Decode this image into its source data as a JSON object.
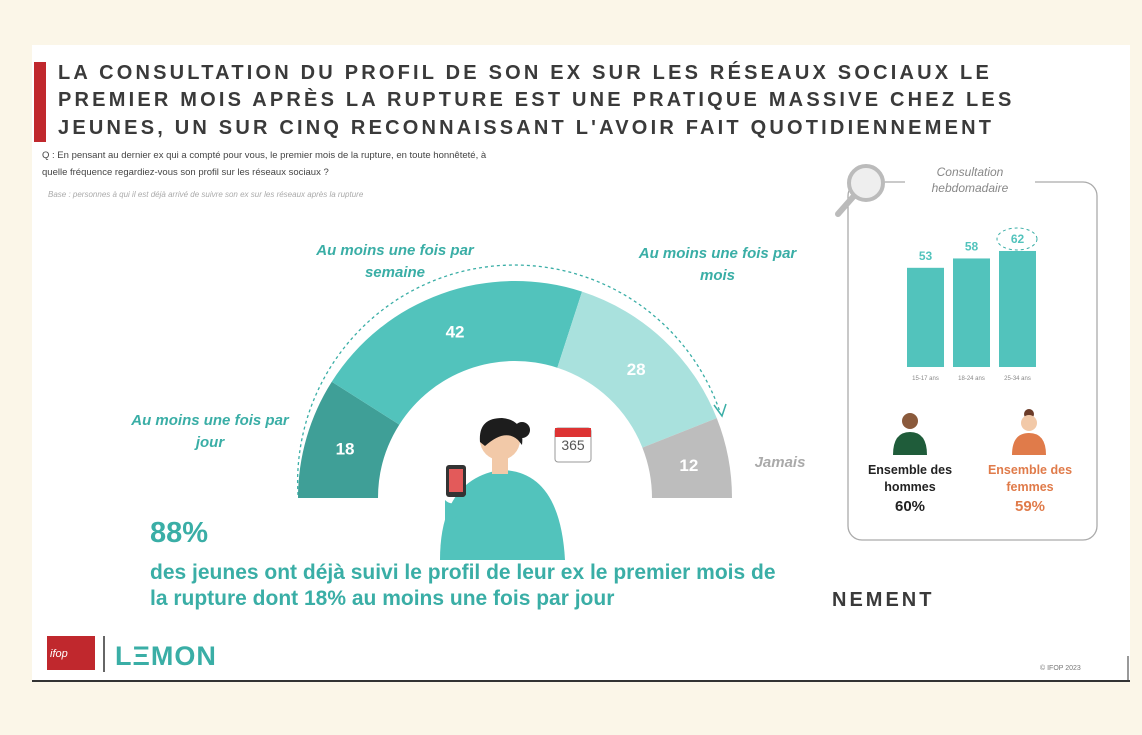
{
  "title_lines": [
    "LA CONSULTATION DU PROFIL DE SON EX SUR LES RÉSEAUX SOCIAUX LE",
    "PREMIER MOIS APRÈS LA RUPTURE EST UNE PRATIQUE MASSIVE CHEZ LES",
    "JEUNES, UN SUR CINQ RECONNAISSANT L'AVOIR FAIT QUOTIDIENNEMENT"
  ],
  "question": "Q : En pensant au dernier ex qui a compté pour vous, le premier mois de la rupture, en toute honnêteté, à quelle fréquence regardiez-vous son profil sur les réseaux sociaux ?",
  "base": "Base : personnes à qui il est déjà arrivé de suivre son ex sur les réseaux après la rupture",
  "chart_data": [
    {
      "type": "gauge",
      "categories": [
        "Au moins une fois par jour",
        "Au moins une fois par semaine",
        "Au moins une fois par mois",
        "Jamais"
      ],
      "values": [
        18,
        42,
        28,
        12
      ],
      "colors": [
        "#3f9f97",
        "#52c3bc",
        "#a9e1dd",
        "#bdbdbd"
      ]
    },
    {
      "type": "bar",
      "title": "Consultation hebdomadaire",
      "categories": [
        "15-17 ans",
        "18-24 ans",
        "25-34 ans"
      ],
      "values": [
        53,
        58,
        62
      ],
      "color": "#52c3bc",
      "ylim": [
        0,
        70
      ]
    }
  ],
  "calendar": "365",
  "men": {
    "label": "Ensemble des hommes",
    "value": "60%"
  },
  "women": {
    "label": "Ensemble des femmes",
    "value": "59%"
  },
  "highlight": {
    "value": "88%",
    "text": "des jeunes ont déjà suivi le profil de leur ex le premier mois de la rupture dont 18% au moins une fois par jour"
  },
  "fragment": "NEMENT",
  "logos": [
    "ifop",
    "LΞMON"
  ],
  "copyright": "© IFOP 2023"
}
